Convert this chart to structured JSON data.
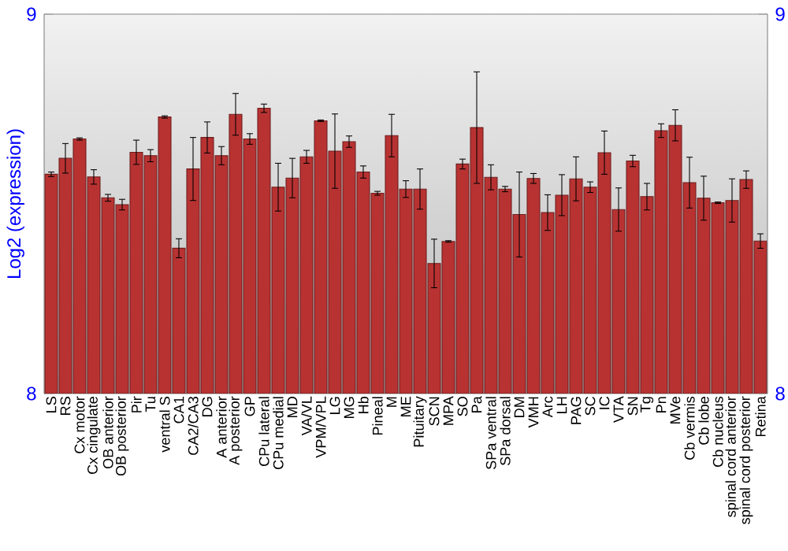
{
  "chart_data": {
    "type": "bar",
    "ylabel": "Log2 (expression)",
    "categories": [
      "LS",
      "RS",
      "Cx motor",
      "Cx cingulate",
      "OB anterior",
      "OB posterior",
      "Pir",
      "Tu",
      "ventral S",
      "CA1",
      "CA2/CA3",
      "DG",
      "A anterior",
      "A posterior",
      "GP",
      "CPu lateral",
      "CPu medial",
      "MD",
      "VA/VL",
      "VPM/VPL",
      "LG",
      "MG",
      "Hb",
      "Pineal",
      "M",
      "ME",
      "Pituitary",
      "SCN",
      "MPA",
      "SO",
      "Pa",
      "SPa ventral",
      "SPa dorsal",
      "DM",
      "VMH",
      "Arc",
      "LH",
      "PAG",
      "SC",
      "IC",
      "VTA",
      "SN",
      "Tg",
      "Pn",
      "MVe",
      "Cb vermis",
      "Cb lobe",
      "Cb nucleus",
      "spinal cord anterior",
      "spinal cord posterior",
      "Retina"
    ],
    "values": [
      8.578,
      8.62,
      8.671,
      8.571,
      8.516,
      8.498,
      8.636,
      8.627,
      8.729,
      8.383,
      8.592,
      8.675,
      8.627,
      8.736,
      8.671,
      8.752,
      8.544,
      8.568,
      8.624,
      8.719,
      8.639,
      8.664,
      8.584,
      8.528,
      8.68,
      8.539,
      8.539,
      8.343,
      8.401,
      8.605,
      8.701,
      8.57,
      8.539,
      8.472,
      8.567,
      8.477,
      8.523,
      8.566,
      8.544,
      8.635,
      8.485,
      8.613,
      8.519,
      8.693,
      8.707,
      8.556,
      8.515,
      8.503,
      8.509,
      8.564,
      8.402
    ],
    "errors": [
      0.006,
      0.039,
      0.003,
      0.019,
      0.009,
      0.014,
      0.032,
      0.016,
      0.003,
      0.025,
      0.083,
      0.041,
      0.024,
      0.055,
      0.014,
      0.011,
      0.063,
      0.052,
      0.017,
      0.002,
      0.098,
      0.015,
      0.016,
      0.005,
      0.056,
      0.022,
      0.053,
      0.064,
      0.002,
      0.013,
      0.147,
      0.033,
      0.007,
      0.112,
      0.013,
      0.047,
      0.054,
      0.058,
      0.014,
      0.057,
      0.057,
      0.015,
      0.035,
      0.018,
      0.041,
      0.067,
      0.058,
      0.002,
      0.057,
      0.023,
      0.019
    ],
    "color": "#b83232",
    "ylim": [
      8,
      9
    ],
    "yticks": [
      8,
      9
    ],
    "y2lim": [
      8,
      9
    ],
    "y2ticks": [
      8,
      9
    ]
  }
}
